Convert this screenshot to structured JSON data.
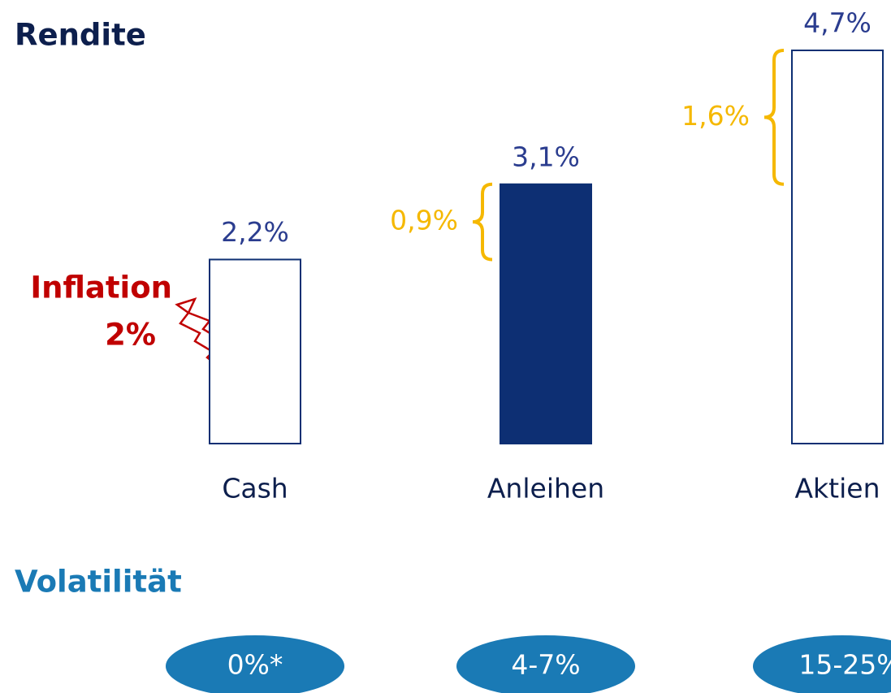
{
  "chart_data": {
    "type": "bar",
    "title": "Rendite",
    "categories": [
      "Cash",
      "Anleihen",
      "Aktien"
    ],
    "values": [
      2.2,
      3.1,
      4.7
    ],
    "value_labels": [
      "2,2%",
      "3,1%",
      "4,7%"
    ],
    "colors": [
      "#ffffff",
      "#0d2f73",
      "#ffffff"
    ],
    "edge_color": "#0d2f73",
    "ylim": [
      0,
      4.7
    ],
    "excess": {
      "values": [
        null,
        0.9,
        1.6
      ],
      "labels": [
        null,
        "0,9%",
        "1,6%"
      ],
      "color": "#f5b800"
    },
    "inflation_label": [
      "Inflation",
      "2%"
    ],
    "volatility": {
      "title": "Volatilität",
      "labels": [
        "0%*",
        "4-7%",
        "15-25%"
      ],
      "color": "#1a7ab5"
    }
  }
}
